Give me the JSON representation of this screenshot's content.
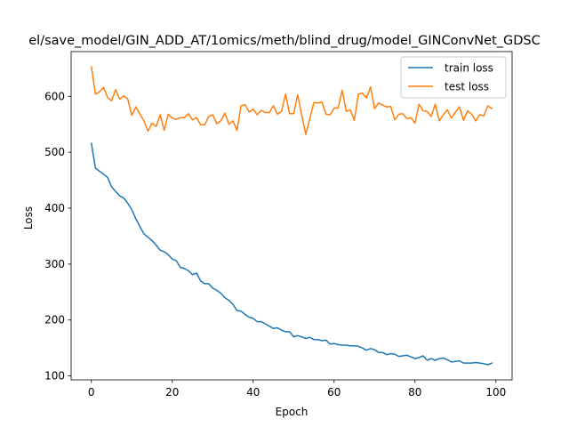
{
  "chart_data": {
    "type": "line",
    "title": "el/save_model/GIN_ADD_AT/1omics/meth/blind_drug/model_GINConvNet_GDSC",
    "xlabel": "Epoch",
    "ylabel": "Loss",
    "xlim": [
      -5,
      104
    ],
    "ylim": [
      93,
      680
    ],
    "xticks": [
      0,
      20,
      40,
      60,
      80,
      100
    ],
    "yticks": [
      100,
      200,
      300,
      400,
      500,
      600
    ],
    "grid": false,
    "legend_position": "top-right",
    "series": [
      {
        "name": "train loss",
        "color": "#1f77b4",
        "values": [
          516,
          472,
          466,
          461,
          455,
          438,
          430,
          422,
          418,
          409,
          397,
          381,
          367,
          354,
          348,
          342,
          334,
          325,
          322,
          317,
          309,
          306,
          294,
          292,
          288,
          281,
          284,
          270,
          265,
          265,
          257,
          253,
          248,
          240,
          235,
          228,
          217,
          216,
          210,
          205,
          203,
          197,
          197,
          193,
          189,
          185,
          186,
          182,
          179,
          179,
          170,
          172,
          170,
          167,
          169,
          165,
          165,
          163,
          164,
          157,
          158,
          156,
          155,
          155,
          154,
          154,
          153,
          150,
          146,
          149,
          147,
          142,
          142,
          138,
          140,
          139,
          135,
          136,
          137,
          134,
          131,
          133,
          136,
          128,
          131,
          128,
          131,
          132,
          129,
          125,
          126,
          127,
          123,
          123,
          123,
          124,
          123,
          122,
          120,
          123
        ]
      },
      {
        "name": "test loss",
        "color": "#ff7f0e",
        "values": [
          653,
          604,
          608,
          616,
          598,
          592,
          612,
          595,
          601,
          595,
          566,
          581,
          568,
          556,
          538,
          552,
          546,
          567,
          539,
          568,
          561,
          559,
          562,
          562,
          569,
          558,
          562,
          549,
          549,
          564,
          567,
          551,
          556,
          570,
          550,
          556,
          539,
          583,
          585,
          572,
          577,
          567,
          575,
          571,
          571,
          583,
          568,
          573,
          604,
          569,
          569,
          603,
          566,
          532,
          560,
          589,
          588,
          590,
          568,
          567,
          579,
          579,
          611,
          573,
          576,
          557,
          604,
          606,
          597,
          617,
          578,
          588,
          584,
          581,
          582,
          558,
          568,
          569,
          560,
          562,
          552,
          586,
          574,
          573,
          564,
          586,
          556,
          567,
          576,
          561,
          572,
          581,
          557,
          574,
          568,
          556,
          567,
          565,
          583,
          578
        ]
      }
    ]
  }
}
